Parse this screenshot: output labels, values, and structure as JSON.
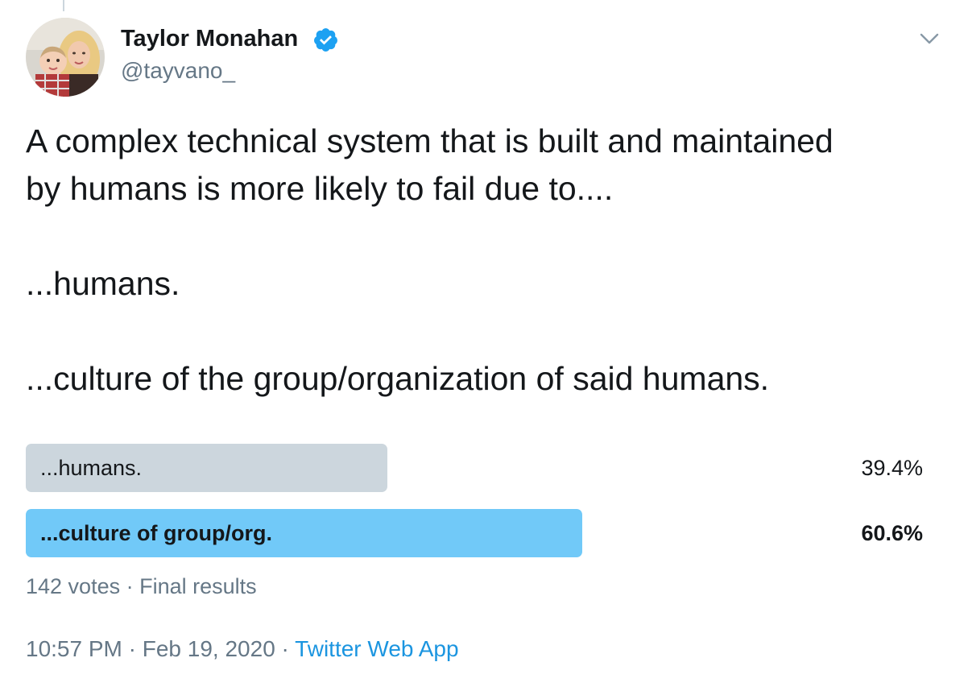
{
  "author": {
    "name": "Taylor Monahan",
    "handle": "@tayvano_",
    "avatar_icon": "profile-photo",
    "verified_icon": "verified-badge-icon"
  },
  "menu": {
    "icon": "chevron-down-icon"
  },
  "tweet": {
    "lines": [
      "A complex technical system that is built and maintained",
      "by humans is more likely to fail due to....",
      "...humans.",
      "...culture of the group/organization of said humans."
    ]
  },
  "poll": {
    "options": [
      {
        "label": "...humans.",
        "percent_text": "39.4%",
        "fraction": 0.394,
        "winner": false
      },
      {
        "label": "...culture of group/org.",
        "percent_text": "60.6%",
        "fraction": 0.606,
        "winner": true
      }
    ],
    "votes_text": "142 votes",
    "separator": " · ",
    "status_text": "Final results"
  },
  "meta": {
    "time": "10:57 PM",
    "date": "Feb 19, 2020",
    "separator": " · ",
    "source": "Twitter Web App"
  },
  "colors": {
    "text": "#14171a",
    "secondary": "#657786",
    "link": "#1b95e0",
    "poll_winner": "#71c9f8",
    "poll_loser": "#ccd6dd",
    "verified": "#1da1f2"
  }
}
